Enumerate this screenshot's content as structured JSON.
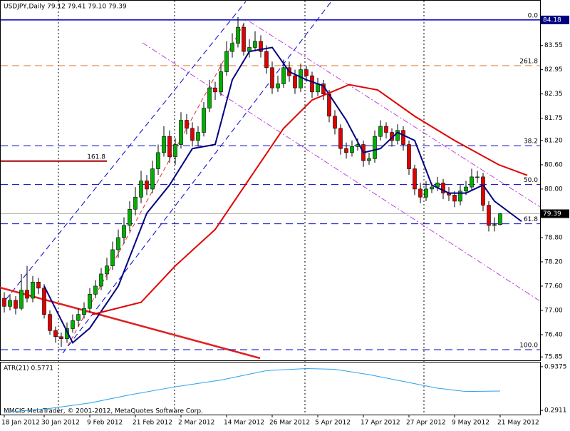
{
  "chart_data": {
    "type": "candlestick",
    "title": "USDJPY,Daily  79.12 79.41 79.10 79.39",
    "footer": "MMCIS MetaTrader, © 2001-2012, MetaQuotes Software Corp.",
    "categories": [
      "18 Jan 2012",
      null,
      null,
      null,
      null,
      null,
      null,
      "30 Jan 2012",
      null,
      null,
      null,
      null,
      null,
      null,
      null,
      "9 Feb 2012",
      null,
      null,
      null,
      null,
      null,
      null,
      null,
      "21 Feb 2012",
      null,
      null,
      null,
      null,
      null,
      null,
      null,
      "2 Mar 2012",
      null,
      null,
      null,
      null,
      null,
      null,
      null,
      "14 Mar 2012",
      null,
      null,
      null,
      null,
      null,
      null,
      null,
      "26 Mar 2012",
      null,
      null,
      null,
      null,
      null,
      null,
      null,
      "5 Apr 2012",
      null,
      null,
      null,
      null,
      null,
      null,
      null,
      "17 Apr 2012",
      null,
      null,
      null,
      null,
      null,
      null,
      null,
      "27 Apr 2012",
      null,
      null,
      null,
      null,
      null,
      null,
      null,
      "9 May 2012",
      null,
      null,
      null,
      null,
      null,
      null,
      null,
      "21 May 2012"
    ],
    "ohlc": [
      [
        77.3,
        77.45,
        76.95,
        77.1
      ],
      [
        77.1,
        77.4,
        77.0,
        77.25
      ],
      [
        77.25,
        77.35,
        76.9,
        77.05
      ],
      [
        77.05,
        77.9,
        77.0,
        77.5
      ],
      [
        77.5,
        78.1,
        77.2,
        77.3
      ],
      [
        77.3,
        77.85,
        77.2,
        77.7
      ],
      [
        77.7,
        77.8,
        77.4,
        77.55
      ],
      [
        77.55,
        77.65,
        76.8,
        76.9
      ],
      [
        76.9,
        77.0,
        76.4,
        76.5
      ],
      [
        76.5,
        76.6,
        76.2,
        76.35
      ],
      [
        76.35,
        76.45,
        76.1,
        76.3
      ],
      [
        76.3,
        76.7,
        76.2,
        76.55
      ],
      [
        76.55,
        76.9,
        76.45,
        76.75
      ],
      [
        76.75,
        77.05,
        76.6,
        76.9
      ],
      [
        76.9,
        77.2,
        76.8,
        77.05
      ],
      [
        77.05,
        77.55,
        76.95,
        77.4
      ],
      [
        77.4,
        77.75,
        77.3,
        77.6
      ],
      [
        77.6,
        78.05,
        77.5,
        77.9
      ],
      [
        77.9,
        78.3,
        77.75,
        78.1
      ],
      [
        78.1,
        78.7,
        78.0,
        78.5
      ],
      [
        78.5,
        79.0,
        78.3,
        78.8
      ],
      [
        78.8,
        79.3,
        78.65,
        79.1
      ],
      [
        79.1,
        79.7,
        78.95,
        79.5
      ],
      [
        79.5,
        80.05,
        79.35,
        79.8
      ],
      [
        79.8,
        80.45,
        79.65,
        80.2
      ],
      [
        80.2,
        80.35,
        79.85,
        80.0
      ],
      [
        80.0,
        80.7,
        79.9,
        80.5
      ],
      [
        80.5,
        81.1,
        80.35,
        80.9
      ],
      [
        80.9,
        81.55,
        80.8,
        81.3
      ],
      [
        81.3,
        81.45,
        80.65,
        80.8
      ],
      [
        80.8,
        81.25,
        80.6,
        81.1
      ],
      [
        81.1,
        81.9,
        81.0,
        81.7
      ],
      [
        81.7,
        81.85,
        81.35,
        81.5
      ],
      [
        81.5,
        81.65,
        81.05,
        81.2
      ],
      [
        81.2,
        81.55,
        81.05,
        81.4
      ],
      [
        81.4,
        82.15,
        81.3,
        82.0
      ],
      [
        82.0,
        82.7,
        81.9,
        82.5
      ],
      [
        82.5,
        82.65,
        82.2,
        82.4
      ],
      [
        82.4,
        83.1,
        82.3,
        82.9
      ],
      [
        82.9,
        83.65,
        82.8,
        83.4
      ],
      [
        83.4,
        83.85,
        83.25,
        83.6
      ],
      [
        83.6,
        84.25,
        83.5,
        84.0
      ],
      [
        84.0,
        84.1,
        83.3,
        83.4
      ],
      [
        83.4,
        83.7,
        83.25,
        83.5
      ],
      [
        83.5,
        83.9,
        83.4,
        83.65
      ],
      [
        83.65,
        83.8,
        83.25,
        83.4
      ],
      [
        83.4,
        83.55,
        82.85,
        83.0
      ],
      [
        83.0,
        83.15,
        82.35,
        82.5
      ],
      [
        82.5,
        82.8,
        82.4,
        82.6
      ],
      [
        82.6,
        83.2,
        82.5,
        83.0
      ],
      [
        83.0,
        83.15,
        82.65,
        82.8
      ],
      [
        82.8,
        82.95,
        82.35,
        82.5
      ],
      [
        82.5,
        83.1,
        82.4,
        82.95
      ],
      [
        82.95,
        83.05,
        82.65,
        82.8
      ],
      [
        82.8,
        82.9,
        82.25,
        82.4
      ],
      [
        82.4,
        82.75,
        82.3,
        82.6
      ],
      [
        82.6,
        82.7,
        82.2,
        82.35
      ],
      [
        82.35,
        82.45,
        81.65,
        81.8
      ],
      [
        81.8,
        81.95,
        81.35,
        81.5
      ],
      [
        81.5,
        81.6,
        80.85,
        81.0
      ],
      [
        81.0,
        81.15,
        80.75,
        80.9
      ],
      [
        80.9,
        81.2,
        80.8,
        81.05
      ],
      [
        81.05,
        81.25,
        80.95,
        81.1
      ],
      [
        81.1,
        81.2,
        80.55,
        80.7
      ],
      [
        80.7,
        80.9,
        80.6,
        80.75
      ],
      [
        80.75,
        81.45,
        80.65,
        81.3
      ],
      [
        81.3,
        81.7,
        81.2,
        81.55
      ],
      [
        81.55,
        81.65,
        81.25,
        81.4
      ],
      [
        81.4,
        81.5,
        81.05,
        81.2
      ],
      [
        81.2,
        81.6,
        81.1,
        81.45
      ],
      [
        81.45,
        81.55,
        80.95,
        81.1
      ],
      [
        81.1,
        81.2,
        80.35,
        80.5
      ],
      [
        80.5,
        80.6,
        79.85,
        80.0
      ],
      [
        80.0,
        80.15,
        79.65,
        79.8
      ],
      [
        79.8,
        80.2,
        79.7,
        80.0
      ],
      [
        80.0,
        80.15,
        79.9,
        80.05
      ],
      [
        80.05,
        80.3,
        79.95,
        80.15
      ],
      [
        80.15,
        80.25,
        79.75,
        79.9
      ],
      [
        79.9,
        80.05,
        79.7,
        79.85
      ],
      [
        79.85,
        79.95,
        79.55,
        79.7
      ],
      [
        79.7,
        80.1,
        79.6,
        79.95
      ],
      [
        79.95,
        80.2,
        79.85,
        80.05
      ],
      [
        80.05,
        80.5,
        79.95,
        80.3
      ],
      [
        80.3,
        80.45,
        80.15,
        80.3
      ],
      [
        80.3,
        80.4,
        79.45,
        79.6
      ],
      [
        79.6,
        79.7,
        78.95,
        79.1
      ],
      [
        79.1,
        79.3,
        78.95,
        79.12
      ],
      [
        79.12,
        79.41,
        79.1,
        79.39
      ]
    ],
    "up_color": "#00b000",
    "down_color": "#e00000",
    "ylim": [
      75.765,
      84.655
    ],
    "yticks": [
      {
        "value": 83.55,
        "label": "83.55"
      },
      {
        "value": 82.95,
        "label": "82.95"
      },
      {
        "value": 82.35,
        "label": "82.35"
      },
      {
        "value": 81.75,
        "label": "81.75"
      },
      {
        "value": 81.2,
        "label": "81.20"
      },
      {
        "value": 80.6,
        "label": "80.60"
      },
      {
        "value": 80,
        "label": "80.00"
      },
      {
        "value": 78.8,
        "label": "78.80"
      },
      {
        "value": 78.2,
        "label": "78.20"
      },
      {
        "value": 77.6,
        "label": "77.60"
      },
      {
        "value": 77,
        "label": "77.00"
      },
      {
        "value": 76.4,
        "label": "76.40"
      },
      {
        "value": 75.85,
        "label": "75.85"
      }
    ],
    "lines": [
      {
        "color": "#000080",
        "x": [
          7,
          12,
          15,
          20,
          25,
          29,
          33,
          37,
          40,
          43,
          47,
          50,
          53,
          56,
          60,
          63,
          66,
          69,
          72,
          75,
          78,
          81,
          84,
          86,
          90.75
        ],
        "values": [
          77.6,
          76.2,
          76.56,
          77.6,
          79.4,
          80.1,
          81.0,
          81.1,
          82.7,
          83.4,
          83.5,
          82.9,
          82.7,
          82.55,
          81.7,
          80.9,
          81.0,
          81.4,
          81.2,
          80.1,
          79.9,
          79.9,
          80.1,
          79.7,
          79.2
        ]
      },
      {
        "color": "#e00000",
        "x": [
          15.5,
          24,
          30,
          37,
          43,
          49,
          54,
          60.5,
          65.5,
          72,
          79,
          86.75,
          91.75
        ],
        "values": [
          76.9,
          77.2,
          78.1,
          79.0,
          80.25,
          81.5,
          82.2,
          82.58,
          82.45,
          81.8,
          81.2,
          80.6,
          80.34
        ]
      }
    ],
    "levels": [
      {
        "label": "0.0",
        "value": 84.18,
        "color": "#0000c0"
      },
      {
        "label": "261.8",
        "value": 83.05,
        "color": "#e07020"
      },
      {
        "label": "38.2",
        "value": 81.07,
        "color": "#0000c0"
      },
      {
        "label": "50.0",
        "value": 80.11,
        "color": "#0000c0"
      },
      {
        "label": "61.8",
        "value": 79.14,
        "color": "#0000c0"
      },
      {
        "label": "100.0",
        "value": 76.03,
        "color": "#0000c0"
      }
    ],
    "short_level": {
      "label": "161.8",
      "value": 80.69,
      "color": "#a00000"
    },
    "atr": {
      "title": "ATR(21) 0.5771",
      "color": "#2aa0f0",
      "ylim": [
        0.2285,
        1.0
      ],
      "yticks": [
        0.9375,
        0.2911
      ],
      "x": [
        0,
        8,
        15,
        22,
        30,
        38,
        46,
        53,
        58,
        64,
        70,
        76,
        81,
        87
      ],
      "values": [
        0.26,
        0.32,
        0.4,
        0.52,
        0.64,
        0.74,
        0.88,
        0.91,
        0.9,
        0.82,
        0.72,
        0.62,
        0.57,
        0.5771
      ]
    }
  }
}
